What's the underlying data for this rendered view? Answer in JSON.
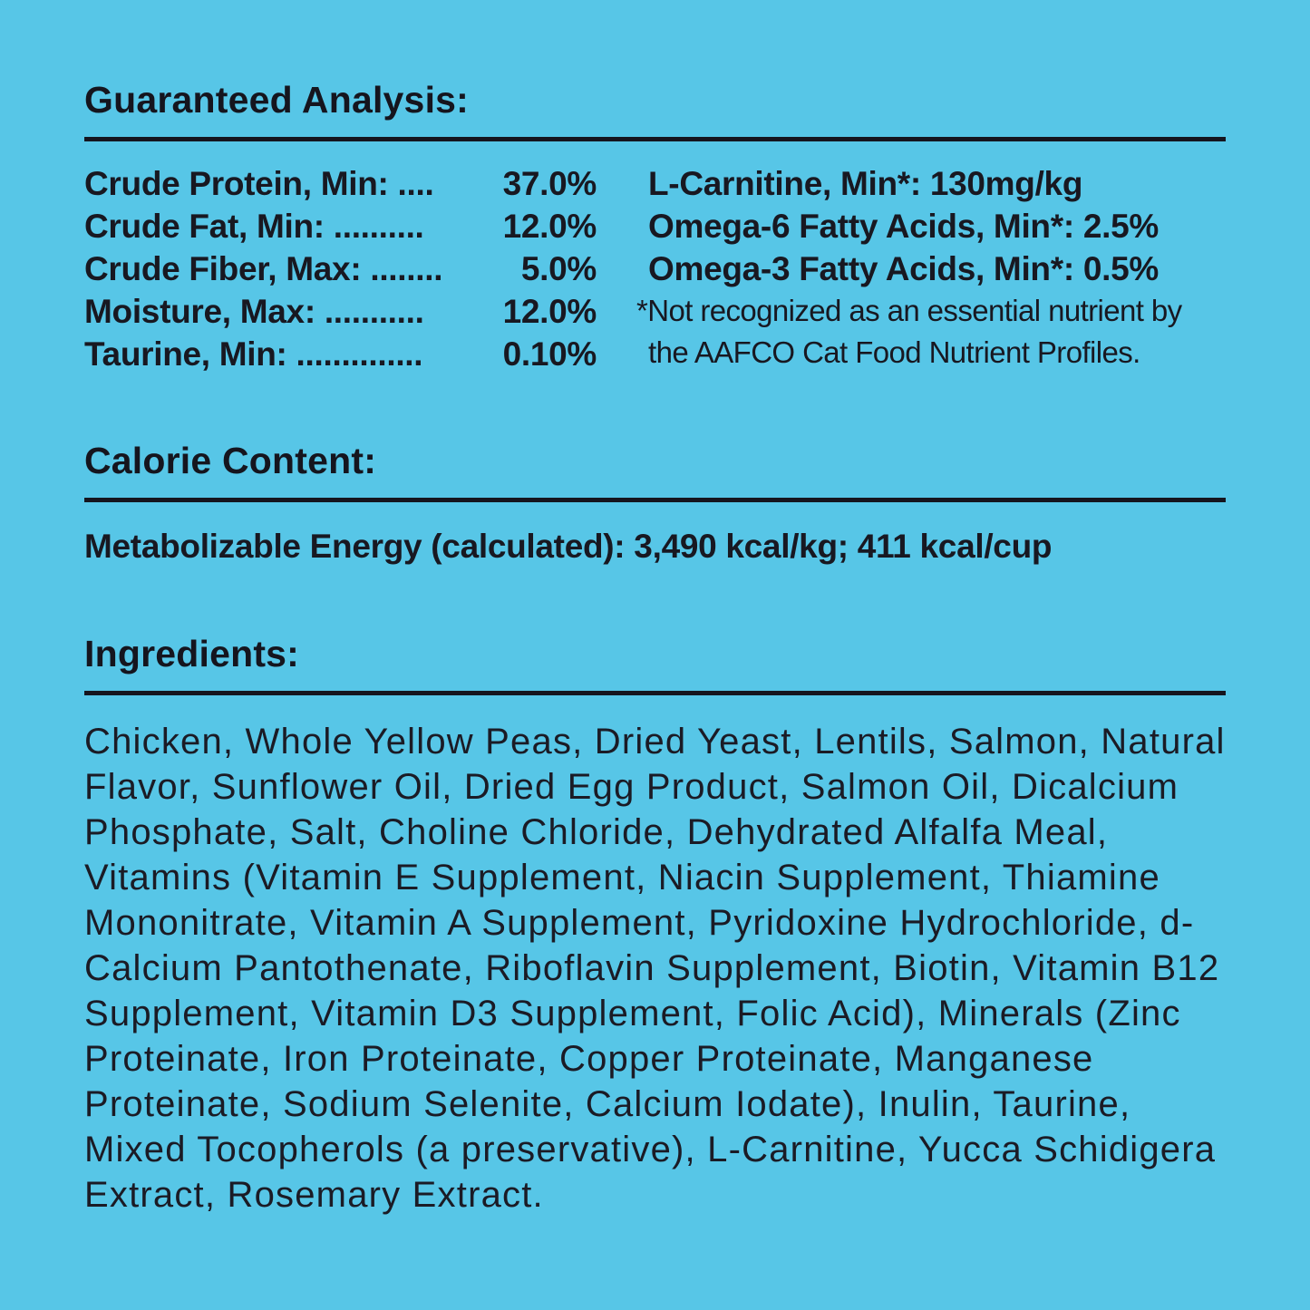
{
  "page": {
    "background_color": "#57c6e7",
    "text_color": "#15151e"
  },
  "guaranteed_analysis": {
    "title": "Guaranteed Analysis:",
    "left_rows": [
      {
        "label": "Crude Protein, Min: ....",
        "value": "37.0%"
      },
      {
        "label": "Crude Fat, Min: ..........",
        "value": "12.0%"
      },
      {
        "label": "Crude Fiber, Max: ........",
        "value": "5.0%"
      },
      {
        "label": "Moisture, Max: ...........",
        "value": "12.0%"
      },
      {
        "label": "Taurine, Min: ..............",
        "value": "0.10%"
      }
    ],
    "right_rows": [
      "L-Carnitine, Min*: 130mg/kg",
      "Omega-6 Fatty Acids, Min*: 2.5%",
      "Omega-3 Fatty Acids, Min*: 0.5%"
    ],
    "footnote_line1": "*Not recognized as an essential nutrient by",
    "footnote_line2": "the AAFCO Cat Food Nutrient Profiles."
  },
  "calorie_content": {
    "title": "Calorie Content:",
    "line": "Metabolizable Energy (calculated): 3,490 kcal/kg; 411 kcal/cup"
  },
  "ingredients": {
    "title": "Ingredients:",
    "text": "Chicken, Whole Yellow Peas, Dried Yeast, Lentils, Salmon, Natural Flavor, Sunflower Oil, Dried Egg Product, Salmon Oil, Dicalcium Phosphate, Salt, Choline Chloride, Dehydrated Alfalfa Meal, Vitamins (Vitamin E Supplement, Niacin Supplement, Thiamine Mononitrate, Vitamin A Supplement, Pyridoxine Hydrochloride, d-Calcium Pantothenate, Riboflavin Supplement, Biotin, Vitamin B12 Supplement, Vitamin D3 Supplement, Folic Acid), Minerals (Zinc Proteinate, Iron Proteinate, Copper Proteinate, Manganese Proteinate, Sodium Selenite, Calcium Iodate), Inulin, Taurine, Mixed Tocopherols (a preservative), L-Carnitine, Yucca Schidigera Extract, Rosemary Extract."
  }
}
